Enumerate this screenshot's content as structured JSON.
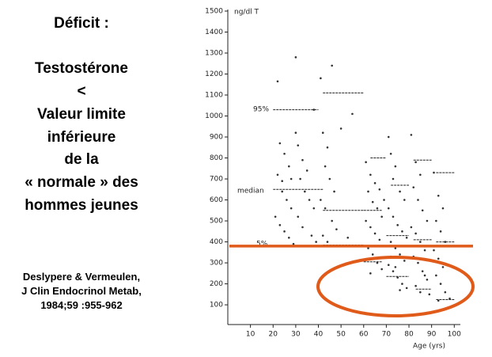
{
  "slide": {
    "heading": "Déficit  :",
    "lines": [
      "Testostérone",
      "<",
      "Valeur limite",
      "inférieure",
      "de la",
      "« normale » des",
      "hommes jeunes"
    ],
    "citation": [
      "Deslypere & Vermeulen,",
      "J Clin Endocrinol Metab,",
      "1984;59 :955-962"
    ]
  },
  "chart_data": {
    "type": "scatter",
    "y_label": "ng/dl T",
    "x_label": "Age (yrs)",
    "annotations": [
      "95%",
      "median",
      "5%"
    ],
    "xlim": [
      0,
      102
    ],
    "ylim": [
      6,
      1500
    ],
    "xticks": [
      10,
      20,
      30,
      40,
      50,
      60,
      70,
      80,
      90,
      100
    ],
    "yticks": [
      100,
      200,
      300,
      400,
      500,
      600,
      700,
      800,
      900,
      1000,
      1100,
      1200,
      1300,
      1400,
      1500
    ],
    "grid": false,
    "series": [
      {
        "color": "#333333",
        "x": [
          22,
          30,
          23,
          25,
          27,
          22,
          24,
          26,
          28,
          21,
          23,
          25,
          27,
          29,
          31,
          33,
          35,
          32,
          34,
          36,
          38,
          31,
          33,
          37,
          39,
          35,
          30,
          38,
          24,
          28,
          41,
          46,
          42,
          44,
          43,
          45,
          47,
          41,
          43,
          46,
          48,
          42,
          44,
          47,
          50,
          55,
          53,
          61,
          63,
          65,
          62,
          64,
          66,
          68,
          61,
          63,
          65,
          67,
          62,
          64,
          66,
          68,
          63,
          69,
          67,
          71,
          72,
          74,
          73,
          76,
          78,
          71,
          73,
          75,
          77,
          79,
          72,
          74,
          76,
          78,
          71,
          73,
          75,
          77,
          79,
          76,
          74,
          72,
          81,
          83,
          85,
          82,
          84,
          86,
          88,
          81,
          83,
          85,
          87,
          82,
          84,
          86,
          88,
          83,
          85,
          89,
          87,
          91,
          93,
          95,
          92,
          94,
          96,
          91,
          93,
          95,
          92,
          94,
          96,
          98,
          93
        ],
        "y": [
          1165,
          1280,
          870,
          820,
          760,
          720,
          690,
          600,
          560,
          520,
          480,
          450,
          420,
          390,
          860,
          790,
          740,
          700,
          640,
          600,
          560,
          520,
          470,
          430,
          400,
          380,
          920,
          1030,
          640,
          700,
          1180,
          1240,
          920,
          850,
          760,
          700,
          640,
          600,
          560,
          500,
          460,
          430,
          400,
          380,
          940,
          1010,
          420,
          780,
          720,
          680,
          640,
          590,
          560,
          520,
          500,
          470,
          440,
          410,
          370,
          340,
          300,
          270,
          250,
          600,
          650,
          900,
          820,
          760,
          700,
          640,
          600,
          560,
          520,
          480,
          450,
          420,
          400,
          370,
          340,
          310,
          290,
          260,
          230,
          200,
          180,
          170,
          280,
          330,
          910,
          780,
          720,
          660,
          600,
          550,
          500,
          470,
          440,
          400,
          360,
          330,
          300,
          260,
          220,
          190,
          160,
          150,
          240,
          730,
          620,
          560,
          500,
          450,
          400,
          360,
          320,
          280,
          240,
          200,
          160,
          130,
          120
        ]
      }
    ],
    "segments": [
      {
        "x": [
          20,
          40
        ],
        "y": 1030
      },
      {
        "x": [
          20,
          42
        ],
        "y": 650
      },
      {
        "x": [
          20,
          40
        ],
        "y": 380
      },
      {
        "x": [
          42,
          60
        ],
        "y": 1110
      },
      {
        "x": [
          42,
          60
        ],
        "y": 550
      },
      {
        "x": [
          42,
          60
        ],
        "y": 385
      },
      {
        "x": [
          63,
          70
        ],
        "y": 800
      },
      {
        "x": [
          60,
          68
        ],
        "y": 550
      },
      {
        "x": [
          60,
          68
        ],
        "y": 305
      },
      {
        "x": [
          72,
          80
        ],
        "y": 670
      },
      {
        "x": [
          70,
          80
        ],
        "y": 430
      },
      {
        "x": [
          70,
          80
        ],
        "y": 235
      },
      {
        "x": [
          82,
          90
        ],
        "y": 790
      },
      {
        "x": [
          82,
          90
        ],
        "y": 410
      },
      {
        "x": [
          83,
          90
        ],
        "y": 175
      },
      {
        "x": [
          92,
          100
        ],
        "y": 730
      },
      {
        "x": [
          92,
          100
        ],
        "y": 400
      },
      {
        "x": [
          92,
          100
        ],
        "y": 125
      }
    ],
    "reference_line": {
      "value": 380,
      "color": "#e05a1a"
    }
  }
}
